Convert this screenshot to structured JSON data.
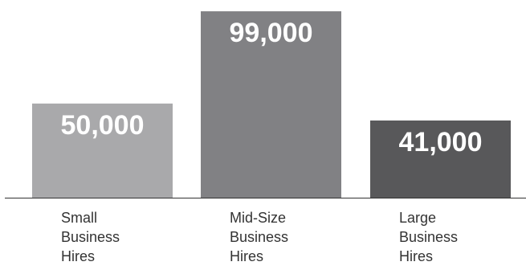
{
  "colors": {
    "baseline": "#333333",
    "value_text": "#ffffff",
    "category_text": "#333333"
  },
  "chart_data": {
    "type": "bar",
    "title": "",
    "xlabel": "",
    "ylabel": "",
    "ylim": [
      0,
      105000
    ],
    "grid": false,
    "legend": "none",
    "categories": [
      [
        "Small",
        "Business",
        "Hires"
      ],
      [
        "Mid-Size",
        "Business",
        "Hires"
      ],
      [
        "Large",
        "Business",
        "Hires"
      ]
    ],
    "values": [
      50000,
      99000,
      41000
    ],
    "value_labels": [
      "50,000",
      "99,000",
      "41,000"
    ],
    "bar_colors": [
      "#a9a9ab",
      "#818184",
      "#58585a"
    ]
  }
}
